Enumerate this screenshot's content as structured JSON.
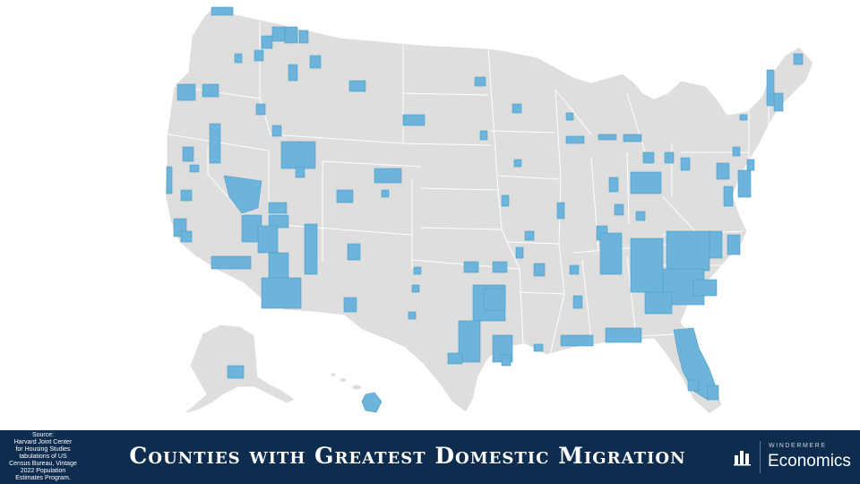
{
  "slide": {
    "title": "Counties with Greatest Domestic Migration",
    "source_lines": [
      "Source:",
      "Harvard Joint Center",
      "for Housing Studies",
      "tabulations of US",
      "Census Bureau, Vintage",
      "2022 Population",
      "Estimates Program."
    ]
  },
  "brand": {
    "top": "WINDERMERE",
    "bottom": "Economics"
  },
  "map": {
    "base_color": "#dedede",
    "highlight_color": "#6cb4d9",
    "footer_color": "#0d2c4e"
  }
}
